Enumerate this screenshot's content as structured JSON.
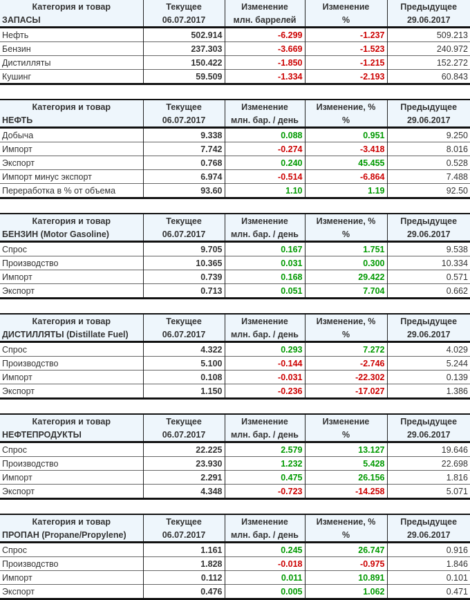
{
  "headers": {
    "col0": "Категория и товар",
    "col1": "Текущее",
    "col2": "Изменение",
    "col4": "Предыдущее",
    "date_current": "06.07.2017",
    "date_prev": "29.06.2017",
    "pct": "%"
  },
  "colors": {
    "negative": "#cc0000",
    "positive": "#009900",
    "header_bg": "#eef6fc"
  },
  "tables": [
    {
      "title": "ЗАПАСЫ",
      "col3": "Изменение",
      "unit": "млн. баррелей",
      "rows": [
        {
          "name": "Нефть",
          "cur": "502.914",
          "chg": "-6.299",
          "pct": "-1.237",
          "prev": "509.213"
        },
        {
          "name": "Бензин",
          "cur": "237.303",
          "chg": "-3.669",
          "pct": "-1.523",
          "prev": "240.972"
        },
        {
          "name": "Дистилляты",
          "cur": "150.422",
          "chg": "-1.850",
          "pct": "-1.215",
          "prev": "152.272"
        },
        {
          "name": "Кушинг",
          "cur": "59.509",
          "chg": "-1.334",
          "pct": "-2.193",
          "prev": "60.843"
        }
      ]
    },
    {
      "title": "НЕФТЬ",
      "col3": "Изменение, %",
      "unit": "млн. бар. / день",
      "rows": [
        {
          "name": "Добыча",
          "cur": "9.338",
          "chg": "0.088",
          "pct": "0.951",
          "prev": "9.250"
        },
        {
          "name": "Импорт",
          "cur": "7.742",
          "chg": "-0.274",
          "pct": "-3.418",
          "prev": "8.016"
        },
        {
          "name": "Экспорт",
          "cur": "0.768",
          "chg": "0.240",
          "pct": "45.455",
          "prev": "0.528"
        },
        {
          "name": "Импорт минус экспорт",
          "cur": "6.974",
          "chg": "-0.514",
          "pct": "-6.864",
          "prev": "7.488"
        },
        {
          "name": "Переработка в % от объема",
          "cur": "93.60",
          "chg": "1.10",
          "pct": "1.19",
          "prev": "92.50"
        }
      ]
    },
    {
      "title": "БЕНЗИН (Motor Gasoline)",
      "col3": "Изменение, %",
      "unit": "млн. бар. / день",
      "rows": [
        {
          "name": "Спрос",
          "cur": "9.705",
          "chg": "0.167",
          "pct": "1.751",
          "prev": "9.538"
        },
        {
          "name": "Производство",
          "cur": "10.365",
          "chg": "0.031",
          "pct": "0.300",
          "prev": "10.334"
        },
        {
          "name": "Импорт",
          "cur": "0.739",
          "chg": "0.168",
          "pct": "29.422",
          "prev": "0.571"
        },
        {
          "name": "Экспорт",
          "cur": "0.713",
          "chg": "0.051",
          "pct": "7.704",
          "prev": "0.662"
        }
      ]
    },
    {
      "title": "ДИСТИЛЛЯТЫ (Distillate Fuel)",
      "col3": "Изменение, %",
      "unit": "млн. бар. / день",
      "rows": [
        {
          "name": "Спрос",
          "cur": "4.322",
          "chg": "0.293",
          "pct": "7.272",
          "prev": "4.029"
        },
        {
          "name": "Производство",
          "cur": "5.100",
          "chg": "-0.144",
          "pct": "-2.746",
          "prev": "5.244"
        },
        {
          "name": "Импорт",
          "cur": "0.108",
          "chg": "-0.031",
          "pct": "-22.302",
          "prev": "0.139"
        },
        {
          "name": "Экспорт",
          "cur": "1.150",
          "chg": "-0.236",
          "pct": "-17.027",
          "prev": "1.386"
        }
      ]
    },
    {
      "title": "НЕФТЕПРОДУКТЫ",
      "col3": "Изменение",
      "unit": "млн. бар. / день",
      "rows": [
        {
          "name": "Спрос",
          "cur": "22.225",
          "chg": "2.579",
          "pct": "13.127",
          "prev": "19.646"
        },
        {
          "name": "Производство",
          "cur": "23.930",
          "chg": "1.232",
          "pct": "5.428",
          "prev": "22.698"
        },
        {
          "name": "Импорт",
          "cur": "2.291",
          "chg": "0.475",
          "pct": "26.156",
          "prev": "1.816"
        },
        {
          "name": "Экспорт",
          "cur": "4.348",
          "chg": "-0.723",
          "pct": "-14.258",
          "prev": "5.071"
        }
      ]
    },
    {
      "title": "ПРОПАН (Propane/Propylene)",
      "col3": "Изменение, %",
      "unit": "млн. бар. / день",
      "rows": [
        {
          "name": "Спрос",
          "cur": "1.161",
          "chg": "0.245",
          "pct": "26.747",
          "prev": "0.916"
        },
        {
          "name": "Производство",
          "cur": "1.828",
          "chg": "-0.018",
          "pct": "-0.975",
          "prev": "1.846"
        },
        {
          "name": "Импорт",
          "cur": "0.112",
          "chg": "0.011",
          "pct": "10.891",
          "prev": "0.101"
        },
        {
          "name": "Экспорт",
          "cur": "0.476",
          "chg": "0.005",
          "pct": "1.062",
          "prev": "0.471"
        }
      ]
    }
  ]
}
